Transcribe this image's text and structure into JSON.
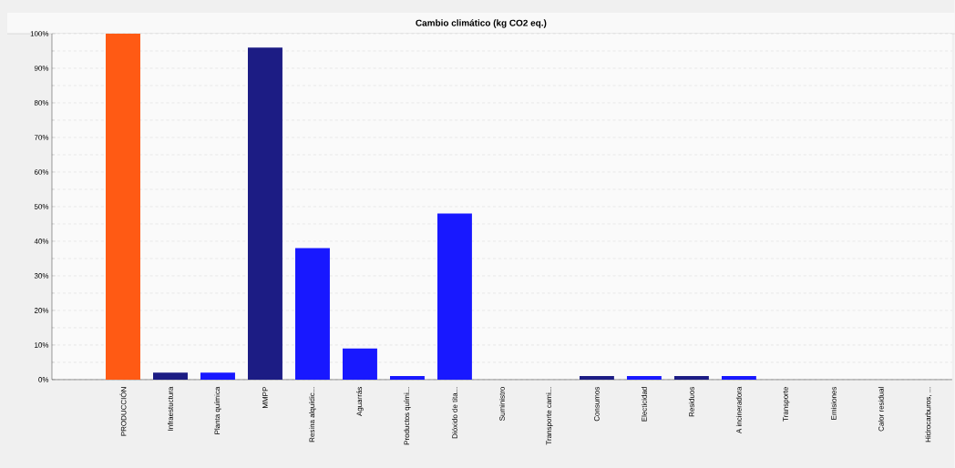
{
  "chart_data": {
    "type": "bar",
    "title": "Cambio climático (kg CO2 eq.)",
    "categories": [
      "PRODUCCIÓN",
      "Infraestuctura",
      "Planta química",
      "MMPP",
      "Resina alquídic...",
      "Aguarrás",
      "Productos quími...",
      "Dióxido de tita...",
      "Suministro",
      "Transporte cami...",
      "Consumos",
      "Electicidad",
      "Residuos",
      "A incineradora",
      "Transporte",
      "Emisiones",
      "Calor residual",
      "Hidrocarburos, ..."
    ],
    "values": [
      100,
      2,
      2,
      96,
      38,
      9,
      1,
      48,
      0,
      0,
      1,
      1,
      1,
      1,
      0,
      0,
      0,
      0
    ],
    "colors": [
      "#ff5a14",
      "#1c1c84",
      "#1818ff",
      "#1c1c84",
      "#1818ff",
      "#1818ff",
      "#1818ff",
      "#1818ff",
      "#1818ff",
      "#1818ff",
      "#1c1c84",
      "#1818ff",
      "#1c1c84",
      "#1818ff",
      "#1818ff",
      "#1818ff",
      "#1818ff",
      "#1818ff"
    ],
    "ylim": [
      0,
      100
    ],
    "yticks": [
      {
        "value": 0,
        "label": "0%"
      },
      {
        "value": 10,
        "label": "10%"
      },
      {
        "value": 20,
        "label": "20%"
      },
      {
        "value": 30,
        "label": "30%"
      },
      {
        "value": 40,
        "label": "40%"
      },
      {
        "value": 50,
        "label": "50%"
      },
      {
        "value": 60,
        "label": "60%"
      },
      {
        "value": 70,
        "label": "70%"
      },
      {
        "value": 80,
        "label": "80%"
      },
      {
        "value": 90,
        "label": "90%"
      },
      {
        "value": 100,
        "label": "100%"
      }
    ],
    "grid": "y"
  }
}
